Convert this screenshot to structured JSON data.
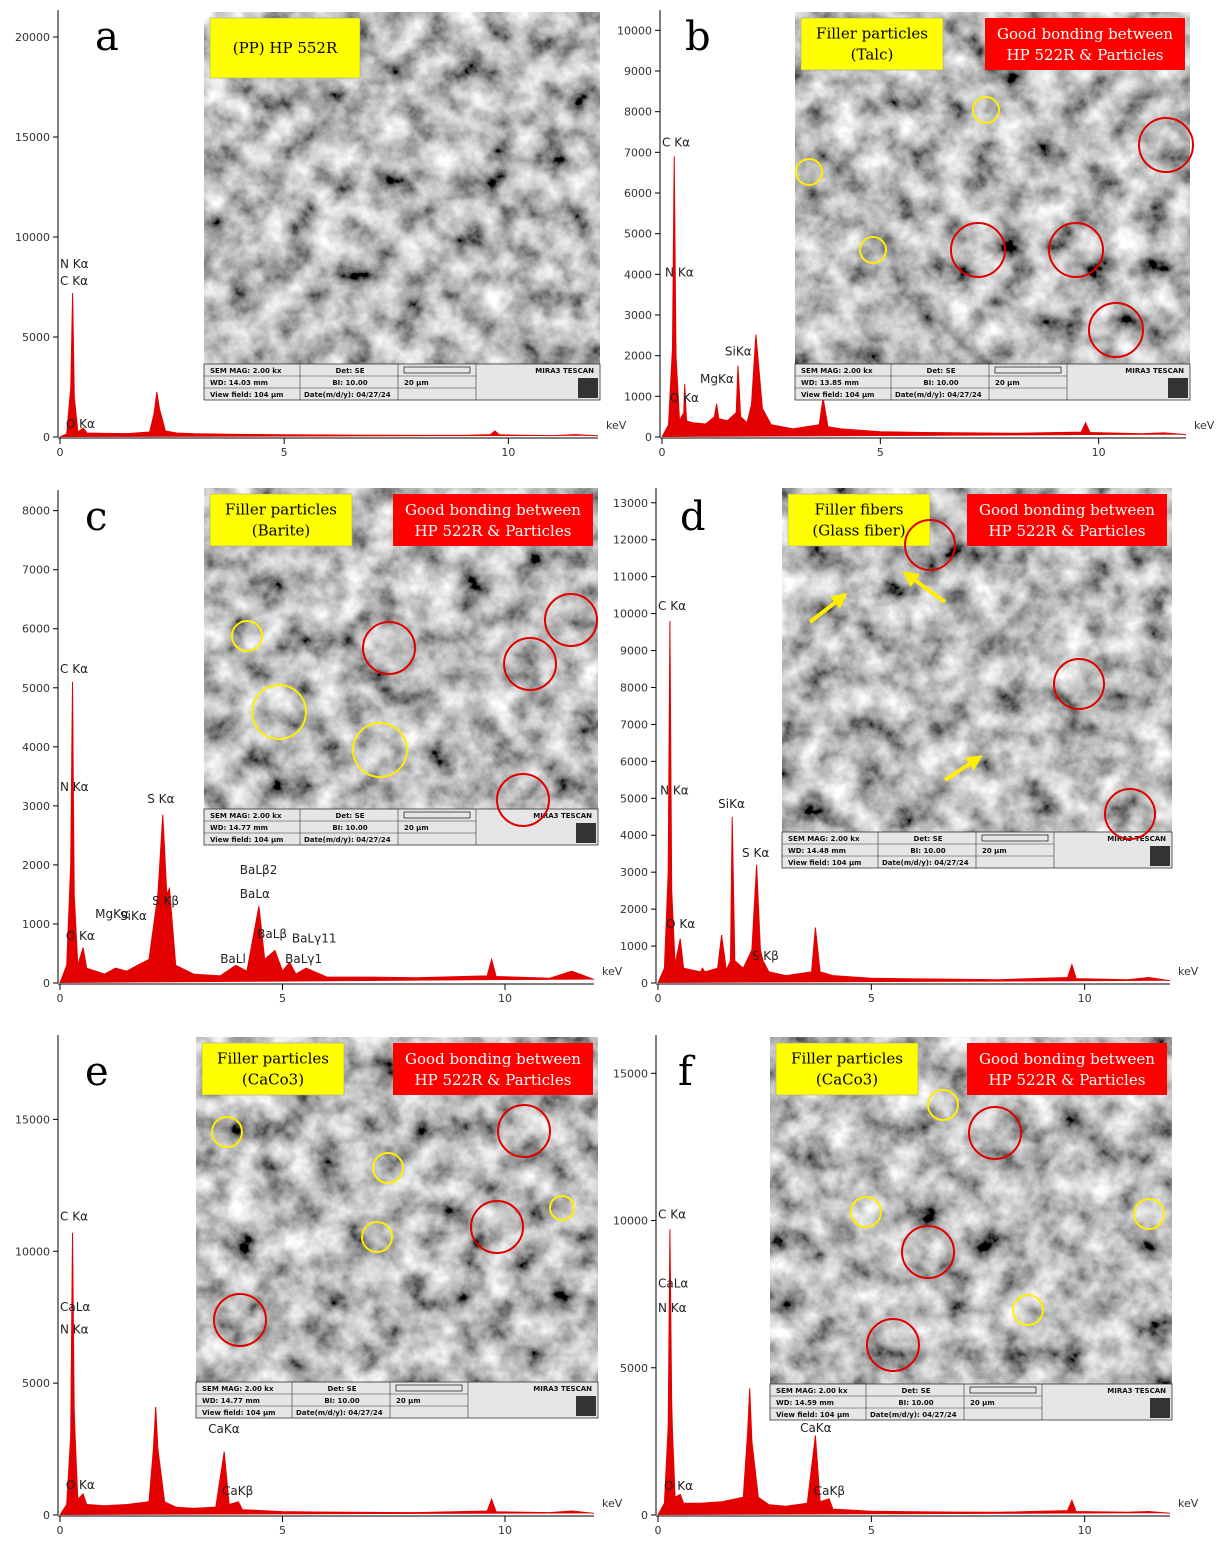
{
  "chart_data": [
    {
      "type": "area",
      "title": "a",
      "color": "#e30000",
      "xlabel": "keV",
      "xlim": [
        0,
        12
      ],
      "xticks": [
        0,
        5,
        10
      ],
      "ylim": [
        0,
        21350
      ],
      "yticks": [
        0,
        5000,
        10000,
        15000,
        20000
      ],
      "x": [
        0,
        0.15,
        0.24,
        0.28,
        0.32,
        0.4,
        0.52,
        0.6,
        1,
        1.5,
        2.0,
        2.1,
        2.16,
        2.22,
        2.35,
        2.6,
        3,
        4,
        5,
        6,
        7,
        8,
        9,
        9.6,
        9.7,
        9.8,
        10.5,
        11,
        11.5,
        12
      ],
      "values": [
        0,
        150,
        2500,
        7200,
        2000,
        250,
        450,
        200,
        180,
        170,
        250,
        1200,
        2250,
        1400,
        300,
        200,
        160,
        130,
        110,
        100,
        90,
        80,
        80,
        120,
        300,
        110,
        80,
        70,
        120,
        60
      ],
      "annotations": [
        {
          "text": "N Kα",
          "x": 0,
          "y": 8450
        },
        {
          "text": "C Kα",
          "x": 0,
          "y": 7600
        },
        {
          "text": "O Kα",
          "x": 0.13,
          "y": 450
        }
      ],
      "inset": {
        "labels": [
          "(PP) HP 552R"
        ],
        "sem_info": [
          "SEM MAG: 2.00 kx",
          "Det: SE",
          "WD: 14.03 mm",
          "BI: 10.00",
          "20 µm",
          "View field: 104 µm",
          "Date(m/d/y): 04/27/24",
          "MIRA3 TESCAN"
        ]
      }
    },
    {
      "type": "area",
      "title": "b",
      "color": "#e30000",
      "xlabel": "keV",
      "xlim": [
        0,
        12
      ],
      "xticks": [
        0,
        5,
        10
      ],
      "ylim": [
        0,
        10500
      ],
      "yticks": [
        0,
        1000,
        2000,
        3000,
        4000,
        5000,
        6000,
        7000,
        8000,
        9000,
        10000
      ],
      "x": [
        0,
        0.15,
        0.24,
        0.28,
        0.32,
        0.4,
        0.5,
        0.52,
        0.56,
        0.7,
        1,
        1.2,
        1.25,
        1.3,
        1.5,
        1.7,
        1.74,
        1.8,
        1.95,
        2.05,
        2.15,
        2.3,
        2.5,
        3,
        3.6,
        3.69,
        3.8,
        4.1,
        5,
        6,
        7,
        8,
        9.6,
        9.7,
        9.8,
        11,
        11.5,
        12
      ],
      "values": [
        0,
        300,
        2200,
        6900,
        2000,
        400,
        600,
        1300,
        400,
        350,
        320,
        500,
        820,
        450,
        400,
        600,
        1750,
        500,
        350,
        800,
        2520,
        700,
        300,
        200,
        300,
        960,
        250,
        200,
        130,
        110,
        100,
        90,
        120,
        350,
        110,
        80,
        100,
        60
      ],
      "annotations": [
        {
          "text": "C Kα",
          "x": 0,
          "y": 7140
        },
        {
          "text": "N Kα",
          "x": 0.07,
          "y": 3950
        },
        {
          "text": "O Kα",
          "x": 0.18,
          "y": 860
        },
        {
          "text": "MgKα",
          "x": 0.87,
          "y": 1330
        },
        {
          "text": "SiKα",
          "x": 1.44,
          "y": 2000
        }
      ],
      "inset": {
        "labels": [
          "Filler particles",
          "(Talc)"
        ],
        "highlights": [
          "Good bonding between",
          "HP 522R & Particles"
        ],
        "sem_info": [
          "SEM MAG: 2.00 kx",
          "Det: SE",
          "WD: 13.85 mm",
          "BI: 10.00",
          "20 µm",
          "View field: 104 µm",
          "Date(m/d/y): 04/27/24",
          "MIRA3 TESCAN"
        ]
      }
    },
    {
      "type": "area",
      "title": "c",
      "color": "#e30000",
      "xlabel": "keV",
      "xlim": [
        0,
        12
      ],
      "xticks": [
        0,
        5,
        10
      ],
      "ylim": [
        0,
        8350
      ],
      "yticks": [
        0,
        1000,
        2000,
        3000,
        4000,
        5000,
        6000,
        7000,
        8000
      ],
      "x": [
        0,
        0.15,
        0.24,
        0.28,
        0.32,
        0.4,
        0.52,
        0.6,
        1,
        1.25,
        1.5,
        1.74,
        2,
        2.2,
        2.31,
        2.4,
        2.46,
        2.6,
        3,
        3.6,
        3.95,
        4.2,
        4.47,
        4.6,
        4.83,
        5,
        5.16,
        5.3,
        5.53,
        6,
        7,
        8,
        9.6,
        9.7,
        9.8,
        11,
        11.5,
        12
      ],
      "values": [
        0,
        300,
        2000,
        5100,
        1500,
        300,
        600,
        250,
        150,
        250,
        200,
        300,
        400,
        1500,
        2850,
        1500,
        1600,
        300,
        150,
        120,
        300,
        200,
        1300,
        400,
        550,
        200,
        350,
        150,
        250,
        100,
        100,
        90,
        120,
        400,
        110,
        80,
        200,
        60
      ],
      "annotations": [
        {
          "text": "C Kα",
          "x": 0,
          "y": 5250
        },
        {
          "text": "N Kα",
          "x": 0,
          "y": 3250
        },
        {
          "text": "O Kα",
          "x": 0.13,
          "y": 730
        },
        {
          "text": "MgKα",
          "x": 0.79,
          "y": 1100
        },
        {
          "text": "SiKα",
          "x": 1.35,
          "y": 1070
        },
        {
          "text": "S Kα",
          "x": 1.96,
          "y": 3050
        },
        {
          "text": "S Kβ",
          "x": 2.07,
          "y": 1320
        },
        {
          "text": "BaLβ2",
          "x": 4.04,
          "y": 1850
        },
        {
          "text": "BaLα",
          "x": 4.04,
          "y": 1440
        },
        {
          "text": "BaLβ",
          "x": 4.43,
          "y": 760
        },
        {
          "text": "BaLγ11",
          "x": 5.21,
          "y": 690
        },
        {
          "text": "BaLγ1",
          "x": 5.06,
          "y": 340
        },
        {
          "text": "BaLl",
          "x": 3.6,
          "y": 340
        }
      ],
      "inset": {
        "labels": [
          "Filler particles",
          "(Barite)"
        ],
        "highlights": [
          "Good bonding between",
          "HP 522R & Particles"
        ],
        "sem_info": [
          "SEM MAG: 2.00 kx",
          "Det: SE",
          "WD: 14.77 mm",
          "BI: 10.00",
          "20 µm",
          "View field: 104 µm",
          "Date(m/d/y): 04/27/24",
          "MIRA3 TESCAN"
        ]
      }
    },
    {
      "type": "area",
      "title": "d",
      "color": "#e30000",
      "xlabel": "keV",
      "xlim": [
        0,
        12
      ],
      "xticks": [
        0,
        5,
        10
      ],
      "ylim": [
        0,
        13400
      ],
      "yticks": [
        0,
        1000,
        2000,
        3000,
        4000,
        5000,
        6000,
        7000,
        8000,
        9000,
        10000,
        11000,
        12000,
        13000
      ],
      "x": [
        0,
        0.15,
        0.24,
        0.28,
        0.32,
        0.4,
        0.52,
        0.6,
        1,
        1.04,
        1.1,
        1.4,
        1.49,
        1.6,
        1.7,
        1.74,
        1.8,
        2,
        2.2,
        2.31,
        2.4,
        2.46,
        2.6,
        3,
        3.6,
        3.69,
        3.8,
        4.1,
        5,
        6,
        7,
        8,
        9.6,
        9.7,
        9.8,
        11,
        11.5,
        12
      ],
      "values": [
        0,
        400,
        3000,
        9800,
        2500,
        500,
        1200,
        400,
        300,
        400,
        300,
        400,
        1300,
        350,
        600,
        4500,
        600,
        400,
        900,
        3200,
        900,
        600,
        300,
        200,
        300,
        1500,
        300,
        200,
        130,
        110,
        100,
        90,
        150,
        500,
        120,
        90,
        150,
        60
      ],
      "annotations": [
        {
          "text": "C Kα",
          "x": 0,
          "y": 10100
        },
        {
          "text": "N Kα",
          "x": 0.05,
          "y": 5100
        },
        {
          "text": "O Kα",
          "x": 0.19,
          "y": 1490
        },
        {
          "text": "SiKα",
          "x": 1.41,
          "y": 4740
        },
        {
          "text": "S Kα",
          "x": 1.97,
          "y": 3410
        },
        {
          "text": "S Kβ",
          "x": 2.2,
          "y": 620
        }
      ],
      "inset": {
        "labels": [
          "Filler fibers",
          "(Glass fiber)"
        ],
        "highlights": [
          "Good bonding between",
          "HP 522R & Particles"
        ],
        "sem_info": [
          "SEM MAG: 2.00 kx",
          "Det: SE",
          "WD: 14.48 mm",
          "BI: 10.00",
          "20 µm",
          "View field: 104 µm",
          "Date(m/d/y): 04/27/24",
          "MIRA3 TESCAN"
        ]
      }
    },
    {
      "type": "area",
      "title": "e",
      "color": "#e30000",
      "xlabel": "keV",
      "xlim": [
        0,
        12
      ],
      "xticks": [
        0,
        5,
        10
      ],
      "ylim": [
        0,
        18200
      ],
      "yticks": [
        0,
        5000,
        10000,
        15000
      ],
      "x": [
        0,
        0.15,
        0.24,
        0.28,
        0.32,
        0.34,
        0.4,
        0.52,
        0.6,
        1,
        1.5,
        2,
        2.1,
        2.15,
        2.2,
        2.35,
        2.6,
        3,
        3.5,
        3.69,
        3.8,
        4.01,
        4.1,
        5,
        6,
        7,
        8,
        9.6,
        9.7,
        9.8,
        11,
        11.5,
        12
      ],
      "values": [
        0,
        400,
        3000,
        10700,
        4000,
        3000,
        600,
        800,
        400,
        350,
        400,
        500,
        2500,
        4100,
        2500,
        500,
        300,
        250,
        300,
        2400,
        400,
        500,
        200,
        130,
        110,
        100,
        90,
        150,
        600,
        120,
        90,
        150,
        60
      ],
      "annotations": [
        {
          "text": "C Kα",
          "x": 0,
          "y": 11170
        },
        {
          "text": "CaLα",
          "x": 0,
          "y": 7730
        },
        {
          "text": "N Kα",
          "x": 0,
          "y": 6890
        },
        {
          "text": "O Kα",
          "x": 0.13,
          "y": 980
        },
        {
          "text": "CaKα",
          "x": 3.33,
          "y": 3110
        },
        {
          "text": "CaKβ",
          "x": 3.64,
          "y": 760
        }
      ],
      "inset": {
        "labels": [
          "Filler particles",
          "(CaCo3)"
        ],
        "highlights": [
          "Good bonding between",
          "HP 522R & Particles"
        ],
        "sem_info": [
          "SEM MAG: 2.00 kx",
          "Det: SE",
          "WD: 14.77 mm",
          "BI: 10.00",
          "20 µm",
          "View field: 104 µm",
          "Date(m/d/y): 04/27/24",
          "MIRA3 TESCAN"
        ]
      }
    },
    {
      "type": "area",
      "title": "f",
      "color": "#e30000",
      "xlabel": "keV",
      "xlim": [
        0,
        12
      ],
      "xticks": [
        0,
        5,
        10
      ],
      "ylim": [
        0,
        16300
      ],
      "yticks": [
        0,
        5000,
        10000,
        15000
      ],
      "x": [
        0,
        0.15,
        0.24,
        0.28,
        0.32,
        0.34,
        0.4,
        0.52,
        0.6,
        1,
        1.5,
        2,
        2.1,
        2.15,
        2.2,
        2.35,
        2.6,
        3,
        3.5,
        3.69,
        3.8,
        4.01,
        4.1,
        5,
        6,
        7,
        8,
        9.6,
        9.7,
        9.8,
        11,
        11.5,
        12
      ],
      "values": [
        0,
        400,
        3000,
        9700,
        3800,
        2800,
        600,
        700,
        400,
        400,
        450,
        600,
        2800,
        4300,
        2500,
        600,
        350,
        300,
        400,
        2700,
        450,
        550,
        200,
        130,
        110,
        100,
        90,
        150,
        500,
        120,
        90,
        120,
        60
      ],
      "annotations": [
        {
          "text": "C Kα",
          "x": 0,
          "y": 10070
        },
        {
          "text": "CaLα",
          "x": 0,
          "y": 7720
        },
        {
          "text": "N Kα",
          "x": 0,
          "y": 6900
        },
        {
          "text": "O Kα",
          "x": 0.14,
          "y": 850
        },
        {
          "text": "CaKα",
          "x": 3.33,
          "y": 2820
        },
        {
          "text": "CaKβ",
          "x": 3.65,
          "y": 680
        }
      ],
      "inset": {
        "labels": [
          "Filler particles",
          "(CaCo3)"
        ],
        "highlights": [
          "Good bonding between",
          "HP 522R & Particles"
        ],
        "sem_info": [
          "SEM MAG: 2.00 kx",
          "Det: SE",
          "WD: 14.59 mm",
          "BI: 10.00",
          "20 µm",
          "View field: 104 µm",
          "Date(m/d/y): 04/27/24",
          "MIRA3 TESCAN"
        ]
      }
    }
  ]
}
